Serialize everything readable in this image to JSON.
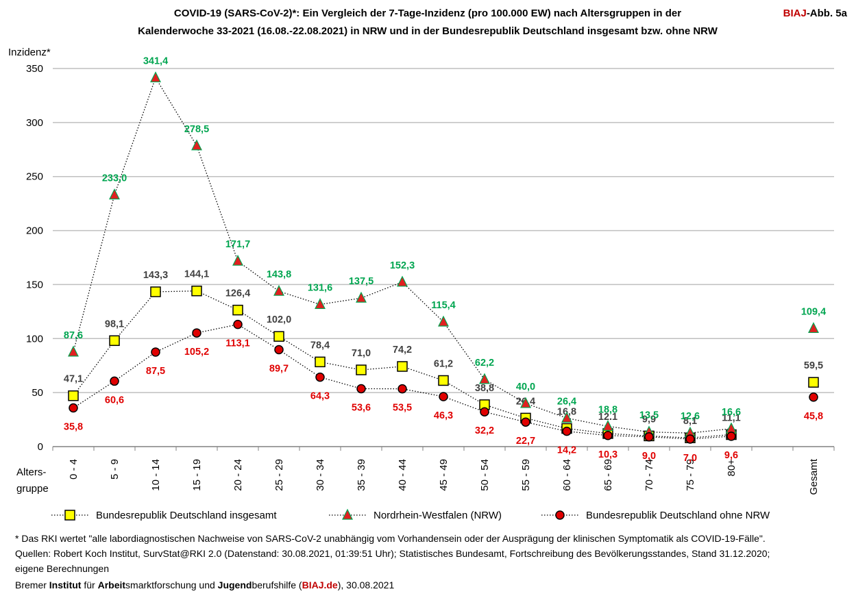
{
  "chart_data": {
    "type": "line",
    "title_lines": [
      "COVID-19 (SARS-CoV-2)*: Ein Vergleich der 7-Tage-Inzidenz (pro 100.000 EW) nach Altersgruppen in der",
      "Kalenderwoche 33-2021 (16.08.-22.08.2021) in NRW und in der Bundesrepublik Deutschland insgesamt bzw. ohne NRW"
    ],
    "badge": {
      "brand": "BIAJ",
      "text": "-Abb. 5a"
    },
    "ylabel": "Inzidenz*",
    "xlabel_lines": [
      "Alters-",
      "gruppe"
    ],
    "categories": [
      "0 - 4",
      "5 - 9",
      "10 - 14",
      "15 - 19",
      "20 - 24",
      "25 - 29",
      "30 - 34",
      "35 - 39",
      "40 - 44",
      "45 - 49",
      "50 - 54",
      "55 - 59",
      "60 - 64",
      "65 - 69",
      "70 - 74",
      "75 - 79",
      "80+",
      null,
      "Gesamt"
    ],
    "ylim": [
      0,
      350
    ],
    "yticks": [
      0,
      50,
      100,
      150,
      200,
      250,
      300,
      350
    ],
    "grid": true,
    "series": [
      {
        "name": "Bundesrepublik Deutschland insgesamt",
        "marker": "square",
        "color": "#ffff00",
        "label_color": "#404040",
        "label_side": "above",
        "values": [
          47.1,
          98.1,
          143.3,
          144.1,
          126.4,
          102.0,
          78.4,
          71.0,
          74.2,
          61.2,
          38.8,
          26.4,
          16.8,
          12.1,
          9.9,
          8.1,
          11.1,
          null,
          59.5
        ],
        "value_labels": [
          "47,1",
          "98,1",
          "143,3",
          "144,1",
          "126,4",
          "102,0",
          "78,4",
          "71,0",
          "74,2",
          "61,2",
          "38,8",
          "26,4",
          "16,8",
          "12.1",
          "9,9",
          "8,1",
          "11,1",
          null,
          "59,5"
        ]
      },
      {
        "name": "Nordrhein-Westfalen (NRW)",
        "marker": "triangle",
        "color": "#e02020",
        "label_color": "#00a550",
        "label_side": "above",
        "values": [
          87.6,
          233.0,
          341.4,
          278.5,
          171.7,
          143.8,
          131.6,
          137.5,
          152.3,
          115.4,
          62.2,
          40.0,
          26.4,
          18.8,
          13.5,
          12.6,
          16.6,
          null,
          109.4
        ],
        "value_labels": [
          "87,6",
          "233,0",
          "341,4",
          "278,5",
          "171,7",
          "143,8",
          "131,6",
          "137,5",
          "152,3",
          "115,4",
          "62,2",
          "40,0",
          "26,4",
          "18,8",
          "13,5",
          "12,6",
          "16,6",
          null,
          "109,4"
        ]
      },
      {
        "name": "Bundesrepublik Deutschland ohne NRW",
        "marker": "circle",
        "color": "#e00000",
        "label_color": "#e00000",
        "label_side": "below",
        "values": [
          35.8,
          60.6,
          87.5,
          105.2,
          113.1,
          89.7,
          64.3,
          53.6,
          53.5,
          46.3,
          32.2,
          22.7,
          14.2,
          10.3,
          9.0,
          7.0,
          9.6,
          null,
          45.8
        ],
        "value_labels": [
          "35,8",
          "60,6",
          "87,5",
          "105,2",
          "113,1",
          "89,7",
          "64,3",
          "53,6",
          "53,5",
          "46,3",
          "32,2",
          "22,7",
          "14,2",
          "10,3",
          "9,0",
          "7,0",
          "9,6",
          null,
          "45,8"
        ]
      }
    ],
    "footnotes": [
      "* Das RKI wertet \"alle labordiagnostischen Nachweise von SARS-CoV-2 unabhängig vom Vorhandensein oder der Ausprägung der klinischen Symptomatik als COVID-19-Fälle\".",
      "Quellen: Robert Koch Institut, SurvStat@RKI 2.0 (Datenstand: 30.08.2021, 01:39:51 Uhr); Statistisches Bundesamt, Fortschreibung des Bevölkerungsstandes, Stand 31.12.2020;",
      "eigene Berechnungen"
    ],
    "source_parts": [
      "Bremer ",
      "Institut",
      " für ",
      "Arbeit",
      "smarktforschung und ",
      "Jugend",
      "berufshilfe (",
      "BIAJ.de",
      "), 30.08.2021"
    ]
  }
}
